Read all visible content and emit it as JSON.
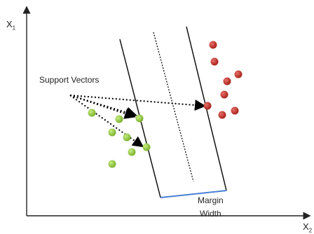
{
  "axes": {
    "y_label": "X",
    "y_sub": "1",
    "x_label": "X",
    "x_sub": "2"
  },
  "labels": {
    "support_vectors": "Support Vectors",
    "margin_line1": "Margin",
    "margin_line2": "Width"
  },
  "colors": {
    "class_a": "#8cc63f",
    "class_b": "#c0392b",
    "axes": "#222222",
    "margin_width_line": "#4a7fd6"
  },
  "icons": {
    "class_a_point": "green-circle",
    "class_b_point": "red-circle"
  }
}
